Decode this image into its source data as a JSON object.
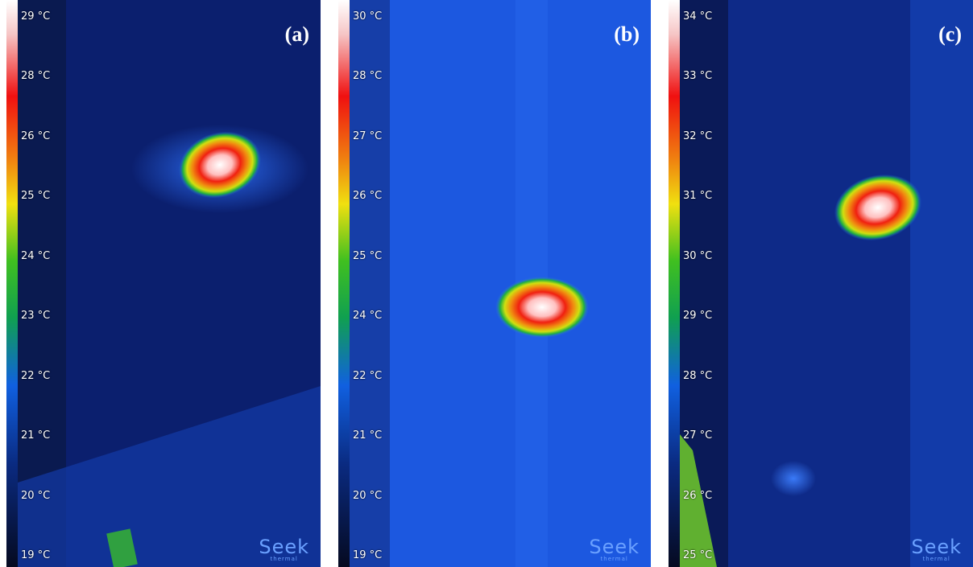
{
  "panels": [
    {
      "label": "(a)",
      "scale": [
        "29 °C",
        "28 °C",
        "26 °C",
        "25 °C",
        "24 °C",
        "23 °C",
        "22 °C",
        "21 °C",
        "20 °C",
        "19 °C"
      ],
      "logo": "Seek",
      "logo_sub": "thermal"
    },
    {
      "label": "(b)",
      "scale": [
        "30 °C",
        "28 °C",
        "27 °C",
        "26 °C",
        "25 °C",
        "24 °C",
        "22 °C",
        "21 °C",
        "20 °C",
        "19 °C"
      ],
      "logo": "Seek",
      "logo_sub": "thermal"
    },
    {
      "label": "(c)",
      "scale": [
        "34 °C",
        "33 °C",
        "32 °C",
        "31 °C",
        "30 °C",
        "29 °C",
        "28 °C",
        "27 °C",
        "26 °C",
        "25 °C"
      ],
      "logo": "Seek",
      "logo_sub": "thermal"
    }
  ]
}
